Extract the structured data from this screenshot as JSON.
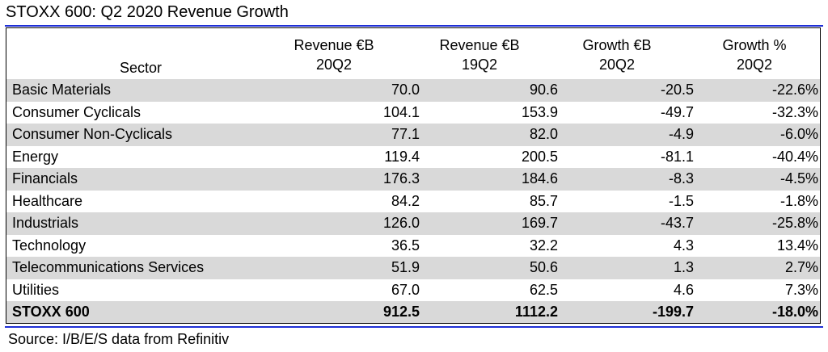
{
  "title": "STOXX 600: Q2 2020 Revenue Growth",
  "source": "Source: I/B/E/S data from Refinitiv",
  "colors": {
    "rule": "#1f2fd6",
    "shaded_row": "#d9d9d9",
    "border": "#000000"
  },
  "chart_data": {
    "type": "table",
    "title": "STOXX 600: Q2 2020 Revenue Growth",
    "columns": [
      {
        "line1": "",
        "line2": "Sector"
      },
      {
        "line1": "Revenue €B",
        "line2": "20Q2"
      },
      {
        "line1": "Revenue €B",
        "line2": "19Q2"
      },
      {
        "line1": "Growth €B",
        "line2": "20Q2"
      },
      {
        "line1": "Growth %",
        "line2": "20Q2"
      }
    ],
    "rows": [
      {
        "sector": "Basic Materials",
        "rev_20q2": "70.0",
        "rev_19q2": "90.6",
        "growth_eur": "-20.5",
        "growth_pct": "-22.6%",
        "shaded": true
      },
      {
        "sector": "Consumer Cyclicals",
        "rev_20q2": "104.1",
        "rev_19q2": "153.9",
        "growth_eur": "-49.7",
        "growth_pct": "-32.3%",
        "shaded": false
      },
      {
        "sector": "Consumer Non-Cyclicals",
        "rev_20q2": "77.1",
        "rev_19q2": "82.0",
        "growth_eur": "-4.9",
        "growth_pct": "-6.0%",
        "shaded": true
      },
      {
        "sector": "Energy",
        "rev_20q2": "119.4",
        "rev_19q2": "200.5",
        "growth_eur": "-81.1",
        "growth_pct": "-40.4%",
        "shaded": false
      },
      {
        "sector": "Financials",
        "rev_20q2": "176.3",
        "rev_19q2": "184.6",
        "growth_eur": "-8.3",
        "growth_pct": "-4.5%",
        "shaded": true
      },
      {
        "sector": "Healthcare",
        "rev_20q2": "84.2",
        "rev_19q2": "85.7",
        "growth_eur": "-1.5",
        "growth_pct": "-1.8%",
        "shaded": false
      },
      {
        "sector": "Industrials",
        "rev_20q2": "126.0",
        "rev_19q2": "169.7",
        "growth_eur": "-43.7",
        "growth_pct": "-25.8%",
        "shaded": true
      },
      {
        "sector": "Technology",
        "rev_20q2": "36.5",
        "rev_19q2": "32.2",
        "growth_eur": "4.3",
        "growth_pct": "13.4%",
        "shaded": false
      },
      {
        "sector": "Telecommunications Services",
        "rev_20q2": "51.9",
        "rev_19q2": "50.6",
        "growth_eur": "1.3",
        "growth_pct": "2.7%",
        "shaded": true
      },
      {
        "sector": "Utilities",
        "rev_20q2": "67.0",
        "rev_19q2": "62.5",
        "growth_eur": "4.6",
        "growth_pct": "7.3%",
        "shaded": false
      }
    ],
    "total": {
      "sector": "STOXX 600",
      "rev_20q2": "912.5",
      "rev_19q2": "1112.2",
      "growth_eur": "-199.7",
      "growth_pct": "-18.0%",
      "shaded": true
    }
  }
}
